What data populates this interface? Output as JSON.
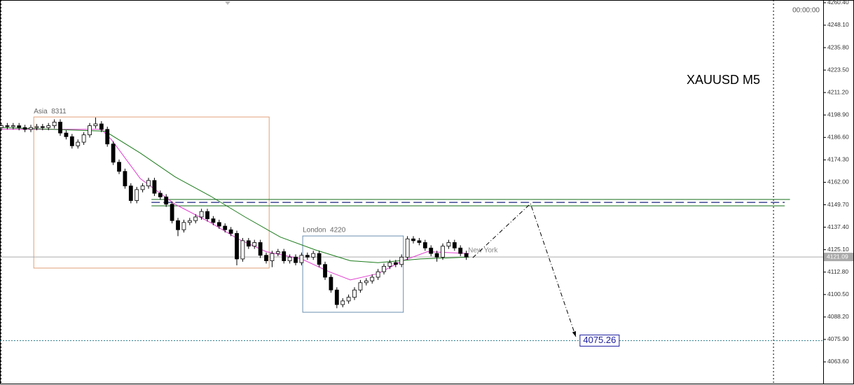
{
  "chart_data": {
    "type": "candlestick",
    "title": "XAUUSD M5",
    "time_label": "00:00:00",
    "xlim": [
      -0.24,
      139.64
    ],
    "ylim": [
      4051.7,
      4261.9
    ],
    "yticks": [
      {
        "value": 4260.4,
        "label": "4260.40"
      },
      {
        "value": 4248.1,
        "label": "4248.10"
      },
      {
        "value": 4235.8,
        "label": "4235.80"
      },
      {
        "value": 4223.5,
        "label": "4223.50"
      },
      {
        "value": 4211.2,
        "label": "4211.20"
      },
      {
        "value": 4198.9,
        "label": "4198.90"
      },
      {
        "value": 4186.6,
        "label": "4186.60"
      },
      {
        "value": 4174.3,
        "label": "4174.30"
      },
      {
        "value": 4162,
        "label": "4162.00"
      },
      {
        "value": 4149.7,
        "label": "4149.70"
      },
      {
        "value": 4137.4,
        "label": "4137.40"
      },
      {
        "value": 4125.1,
        "label": "4125.10"
      },
      {
        "value": 4112.8,
        "label": "4112.80"
      },
      {
        "value": 4100.5,
        "label": "4100.50"
      },
      {
        "value": 4088.2,
        "label": "4088.20"
      },
      {
        "value": 4075.9,
        "label": "4075.90"
      },
      {
        "value": 4063.6,
        "label": "4063.60"
      }
    ],
    "open": [
      4192,
      4193,
      4192.5,
      4193,
      4192,
      4191,
      4192,
      4192.5,
      4192,
      4193,
      4195,
      4189,
      4187,
      4182,
      4184,
      4188,
      4193,
      4194,
      4191,
      4183,
      4173,
      4168,
      4160,
      4152,
      4158,
      4160,
      4163,
      4156,
      4154,
      4150,
      4141,
      4136,
      4140,
      4141,
      4143,
      4146,
      4142,
      4140,
      4138,
      4136,
      4134,
      4120,
      4130,
      4127,
      4129,
      4122,
      4119,
      4123,
      4124,
      4119,
      4121,
      4118,
      4122,
      4121,
      4123,
      4117,
      4110,
      4103,
      4095,
      4097,
      4099,
      4103,
      4107,
      4108,
      4110,
      4113,
      4116,
      4118,
      4117,
      4121,
      4131,
      4130,
      4129,
      4126,
      4123,
      4121,
      4127,
      4129,
      4126,
      4123
    ],
    "high": [
      4194.5,
      4194.5,
      4194.5,
      4194.5,
      4193.5,
      4193.5,
      4194,
      4194,
      4194.5,
      4196.5,
      4196.5,
      4190.5,
      4188.5,
      4185.5,
      4189.5,
      4194.5,
      4197.5,
      4195.5,
      4192.5,
      4184.5,
      4174.5,
      4169.5,
      4161.5,
      4159.5,
      4161.5,
      4164.5,
      4164.5,
      4157.5,
      4155.5,
      4151.5,
      4142.5,
      4141.5,
      4142.5,
      4144.5,
      4147.5,
      4147.5,
      4143.5,
      4141.5,
      4139.5,
      4137.5,
      4135.5,
      4131.5,
      4131.5,
      4130.5,
      4130.5,
      4123.5,
      4124.5,
      4125.5,
      4125.5,
      4122.5,
      4122.5,
      4123.5,
      4123.5,
      4124.5,
      4124.5,
      4118.5,
      4111.5,
      4104.5,
      4098.5,
      4100.5,
      4104.5,
      4108.5,
      4109.5,
      4111.5,
      4114.5,
      4117.5,
      4119.5,
      4119.5,
      4122.5,
      4132.5,
      4132.5,
      4131.5,
      4130.5,
      4127.5,
      4124.5,
      4128.5,
      4130.5,
      4130.5,
      4127.5,
      4124.5
    ],
    "low": [
      4190.5,
      4191,
      4191,
      4190.5,
      4189.5,
      4189.5,
      4190.5,
      4190.5,
      4190.5,
      4191.5,
      4187.5,
      4185.5,
      4180.5,
      4180.5,
      4182.5,
      4186.5,
      4191.5,
      4189.5,
      4181.5,
      4171.5,
      4166.5,
      4158.5,
      4150.5,
      4150.5,
      4156.5,
      4158.5,
      4154.5,
      4152.5,
      4148.5,
      4139.5,
      4132.5,
      4134.5,
      4138.5,
      4139.5,
      4141.5,
      4140.5,
      4138.5,
      4136.5,
      4134.5,
      4132.5,
      4116.5,
      4118.5,
      4125.5,
      4125.5,
      4120.5,
      4117.5,
      4115.5,
      4121.5,
      4117.5,
      4117.5,
      4116.5,
      4116.5,
      4119.5,
      4119.5,
      4115.5,
      4108.5,
      4101.5,
      4093,
      4093.5,
      4095.5,
      4097.5,
      4101.5,
      4105.5,
      4106.5,
      4108.5,
      4111.5,
      4114.5,
      4115.5,
      4115.5,
      4119.5,
      4128.5,
      4127.5,
      4124.5,
      4121.5,
      4118.5,
      4119.5,
      4125.5,
      4124.5,
      4121.5,
      4119.5
    ],
    "close": [
      4193,
      4192.5,
      4193,
      4192,
      4191,
      4192,
      4192.5,
      4192,
      4193,
      4195,
      4189,
      4187,
      4182,
      4184,
      4188,
      4193,
      4194,
      4191,
      4183,
      4173,
      4168,
      4160,
      4152,
      4158,
      4160,
      4163,
      4156,
      4154,
      4150,
      4141,
      4136,
      4140,
      4141,
      4143,
      4146,
      4142,
      4140,
      4138,
      4136,
      4134,
      4120,
      4130,
      4127,
      4129,
      4122,
      4119,
      4123,
      4124,
      4119,
      4121,
      4118,
      4122,
      4121,
      4123,
      4117,
      4110,
      4103,
      4095,
      4097,
      4099,
      4103,
      4107,
      4108,
      4110,
      4113,
      4116,
      4118,
      4117,
      4121,
      4131,
      4130,
      4129,
      4126,
      4123,
      4121,
      4127,
      4129,
      4126,
      4123,
      4121.09
    ],
    "series": [
      {
        "color": "#e040d0",
        "x": [
          0,
          17,
          18.8,
          23.6,
          29.5,
          35.5,
          40.2,
          45,
          51,
          55.7,
          59.3,
          64,
          68.2,
          72.4,
          79.5
        ],
        "values": [
          4191,
          4191,
          4185,
          4164,
          4150,
          4140,
          4131,
          4124,
          4120,
          4113,
          4108.5,
          4112,
          4119,
          4124,
          4123
        ]
      },
      {
        "color": "#1b7a1b",
        "x": [
          0,
          17.6,
          23.6,
          29.5,
          35.5,
          41.4,
          47.4,
          53.3,
          59.3,
          64,
          71.2,
          79.5
        ],
        "values": [
          4192,
          4190,
          4178,
          4165,
          4154.5,
          4143,
          4132,
          4125,
          4119,
          4118,
          4120,
          4121
        ]
      }
    ],
    "sessions": [
      {
        "label": "Asia  8311",
        "color": "#e0a078",
        "x": [
          5.5,
          45.5
        ],
        "y": [
          4115.0,
          4197.8
        ]
      },
      {
        "label": "London  4220",
        "color": "#6a8fb0",
        "x": [
          51.2,
          68.3
        ],
        "y": [
          4090.8,
          4132.6
        ]
      }
    ],
    "new_york": {
      "label": "New York",
      "x": 79.3,
      "y": 4124.6
    },
    "levels": [
      {
        "value": 4152.6,
        "color": "#2e7d32",
        "x": [
          25.5,
          134
        ]
      },
      {
        "value": 4151.0,
        "color": "#1a237e",
        "dashed": true,
        "x": [
          25.5,
          133.1
        ]
      },
      {
        "value": 4149.1,
        "color": "#2e7d32",
        "x": [
          25.5,
          133.1
        ]
      }
    ],
    "current_price": 4121.09,
    "target": 4075.26,
    "arrow": {
      "x": [
        80.1,
        89.9,
        97.6
      ],
      "y": [
        4120.7,
        4150.3,
        4077.4
      ]
    },
    "separator_x": 131.2
  }
}
